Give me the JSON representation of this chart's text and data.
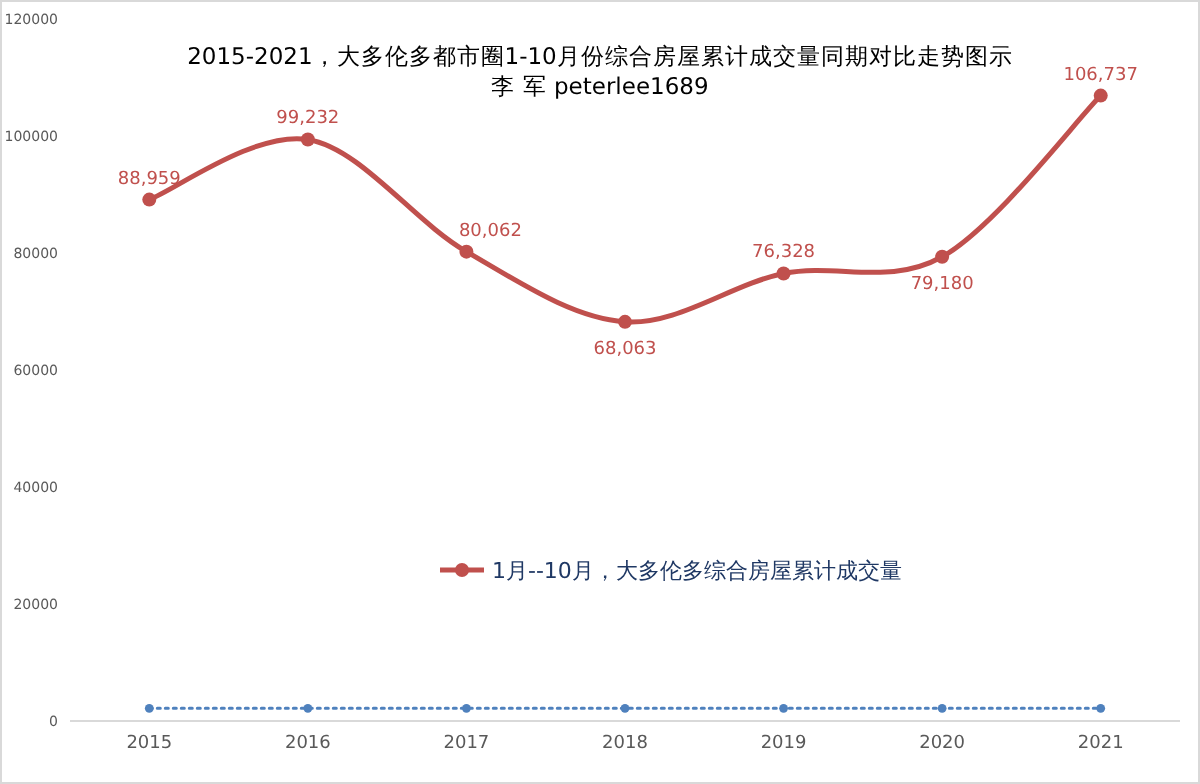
{
  "chart_data": {
    "type": "line",
    "title": "2015-2021，大多伦多都市圈1-10月份综合房屋累计成交量同期对比走势图示",
    "subtitle": "李 军  peterlee1689",
    "categories": [
      "2015",
      "2016",
      "2017",
      "2018",
      "2019",
      "2020",
      "2021"
    ],
    "series": [
      {
        "name": "1月--10月，大多伦多综合房屋累计成交量",
        "color": "#c0504d",
        "values": [
          88959,
          99232,
          80062,
          68063,
          76328,
          79180,
          106737
        ],
        "value_labels": [
          "88,959",
          "99,232",
          "80,062",
          "68,063",
          "76,328",
          "79,180",
          "106,737"
        ],
        "marker": "circle",
        "line_style": "solid"
      },
      {
        "color": "#4f81bd",
        "values": [
          2000,
          2000,
          2000,
          2000,
          2000,
          2000,
          2000
        ],
        "marker": "circle",
        "line_style": "dotted"
      }
    ],
    "ylim": [
      0,
      120000
    ],
    "yticks": [
      0,
      20000,
      40000,
      60000,
      80000,
      100000,
      120000
    ],
    "grid": false,
    "legend": "bottom"
  }
}
